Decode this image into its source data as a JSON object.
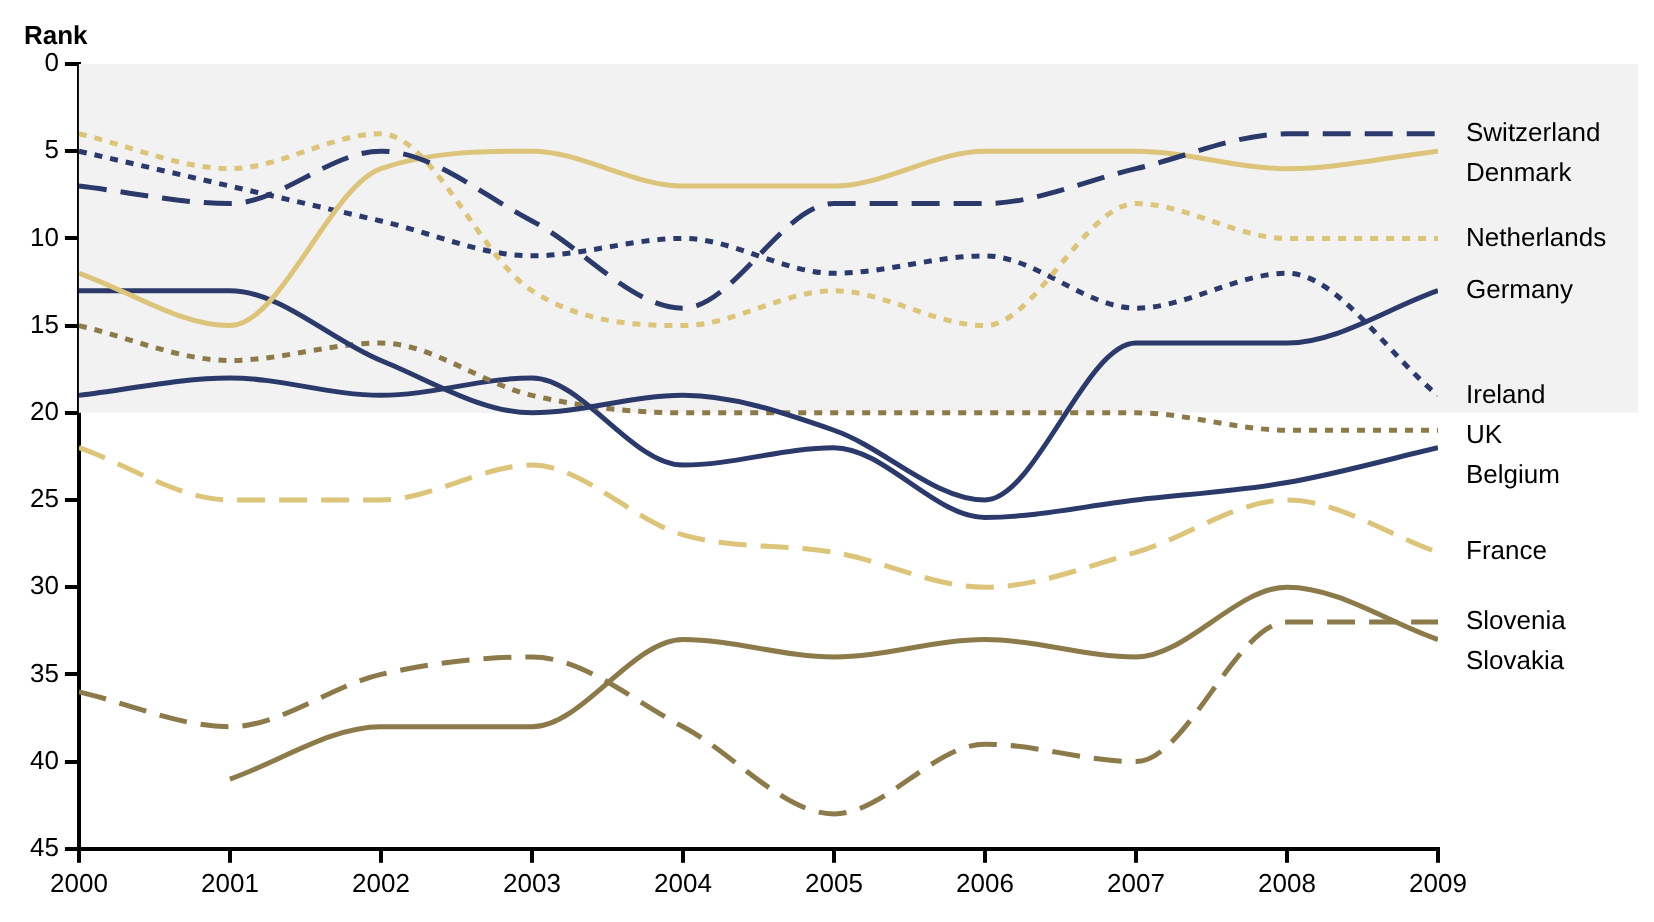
{
  "chart_data": {
    "type": "line",
    "ylabel": "Rank",
    "x": [
      2000,
      2001,
      2002,
      2003,
      2004,
      2005,
      2006,
      2007,
      2008,
      2009
    ],
    "xlim": [
      2000,
      2009
    ],
    "xticks": [
      2000,
      2001,
      2002,
      2003,
      2004,
      2005,
      2006,
      2007,
      2008,
      2009
    ],
    "ylim": [
      45,
      0
    ],
    "yticks": [
      0,
      5,
      10,
      15,
      20,
      25,
      30,
      35,
      40,
      45
    ],
    "grid": false,
    "legend": false,
    "marker": "none",
    "bands": [
      {
        "axis": "y",
        "from": 0,
        "to": 20,
        "color": "#f2f2f2"
      }
    ],
    "series": [
      {
        "name": "Switzerland",
        "color": "#2b3a6b",
        "line_style": "dashed",
        "values": [
          7,
          8,
          5,
          9,
          14,
          8,
          8,
          6,
          4,
          4
        ]
      },
      {
        "name": "Denmark",
        "color": "#dcc47a",
        "line_style": "solid",
        "values": [
          12,
          15,
          6,
          5,
          7,
          7,
          5,
          5,
          6,
          5
        ]
      },
      {
        "name": "Netherlands",
        "color": "#dcc47a",
        "line_style": "dotted",
        "values": [
          4,
          6,
          4,
          13,
          15,
          13,
          15,
          8,
          10,
          10
        ]
      },
      {
        "name": "Germany",
        "color": "#2b3a6b",
        "line_style": "solid",
        "values": [
          13,
          13,
          17,
          20,
          19,
          21,
          25,
          16,
          16,
          13
        ]
      },
      {
        "name": "Ireland",
        "color": "#2b3a6b",
        "line_style": "dotted",
        "values": [
          5,
          7,
          9,
          11,
          10,
          12,
          11,
          14,
          12,
          19
        ]
      },
      {
        "name": "UK",
        "color": "#8c7a4a",
        "line_style": "dotted",
        "values": [
          15,
          17,
          16,
          19,
          20,
          20,
          20,
          20,
          21,
          21
        ]
      },
      {
        "name": "Belgium",
        "color": "#2b3a6b",
        "line_style": "solid",
        "values": [
          19,
          18,
          19,
          18,
          23,
          22,
          26,
          25,
          24,
          22
        ]
      },
      {
        "name": "France",
        "color": "#dcc47a",
        "line_style": "dashed",
        "values": [
          22,
          25,
          25,
          23,
          27,
          28,
          30,
          28,
          25,
          28
        ]
      },
      {
        "name": "Slovenia",
        "color": "#8c7a4a",
        "line_style": "dashed",
        "values": [
          36,
          38,
          35,
          34,
          38,
          43,
          39,
          40,
          32,
          32
        ]
      },
      {
        "name": "Slovakia",
        "color": "#8c7a4a",
        "line_style": "solid",
        "values": [
          null,
          41,
          38,
          38,
          33,
          34,
          33,
          34,
          30,
          33
        ]
      }
    ]
  }
}
